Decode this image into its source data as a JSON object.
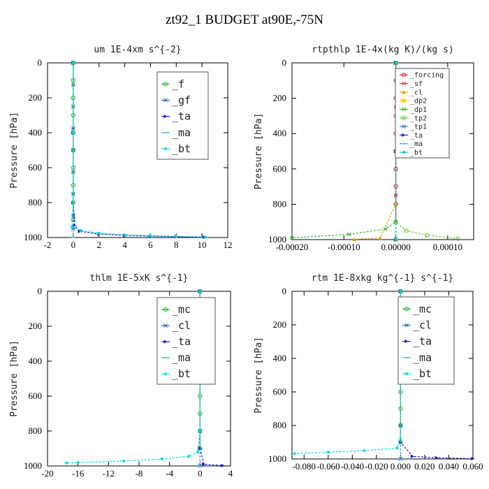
{
  "title": "zt92_1  BUDGET at90E,-75N",
  "chart_data": [
    {
      "type": "line",
      "title": "um   1E-4xm s^{-2}",
      "ylabel": "Pressure [hPa]",
      "xlim": [
        -2,
        12
      ],
      "ylim": [
        0,
        1000
      ],
      "y_inverted": true,
      "xticks": [
        "-2",
        "0",
        "2",
        "4",
        "6",
        "8",
        "10",
        "12"
      ],
      "yticks": [
        "0",
        "200",
        "400",
        "600",
        "800",
        "1000"
      ],
      "legend_style": "big",
      "legend_placement": "top-right",
      "series": [
        {
          "name": "_f",
          "color": "#22aa22",
          "marker": "o",
          "x": [
            0,
            0,
            0,
            0,
            0,
            0,
            0,
            0,
            0,
            0
          ],
          "y": [
            0,
            100,
            200,
            300,
            400,
            500,
            600,
            700,
            800,
            900
          ]
        },
        {
          "name": "_gf",
          "color": "#2a6fb0",
          "marker": "*",
          "x": [
            0,
            0,
            0,
            0,
            0,
            0,
            0,
            0,
            0
          ],
          "y": [
            0,
            125,
            250,
            375,
            500,
            625,
            750,
            875,
            950
          ]
        },
        {
          "name": "_ta",
          "color": "#1a1acc",
          "marker": ">",
          "x": [
            0,
            0,
            0,
            0.1,
            0.5,
            2,
            4,
            6,
            8,
            10.2
          ],
          "y": [
            0,
            400,
            800,
            930,
            965,
            980,
            988,
            992,
            995,
            998
          ]
        },
        {
          "name": "_ma",
          "color": "#33aadd",
          "marker": "-",
          "x": [
            0,
            0,
            0,
            0,
            0
          ],
          "y": [
            0,
            250,
            500,
            750,
            1000
          ]
        },
        {
          "name": "_bt",
          "color": "#00dddd",
          "marker": "D",
          "x": [
            0,
            0,
            0,
            -0.1,
            0.6,
            2,
            4,
            6,
            8,
            10.3
          ],
          "y": [
            0,
            400,
            800,
            940,
            960,
            975,
            985,
            990,
            994,
            998
          ]
        }
      ]
    },
    {
      "type": "line",
      "title": "rtpthlp   1E-4x(kg K)/(kg s)",
      "ylabel": "Pressure [hPa]",
      "xlim": [
        -0.0002,
        0.00015
      ],
      "ylim": [
        0,
        1000
      ],
      "y_inverted": true,
      "xticks": [
        "-0.00020",
        "-0.00010",
        "0.00000",
        "0.00010"
      ],
      "xtick_values": [
        -0.0002,
        -0.0001,
        0,
        0.0001
      ],
      "yticks": [
        "0",
        "200",
        "400",
        "600",
        "800",
        "1000"
      ],
      "legend_style": "small",
      "legend_placement": "top-right",
      "series": [
        {
          "name": "_forcing",
          "color": "#cc2222",
          "marker": "o",
          "x": [
            0,
            0,
            0,
            0,
            0,
            0,
            0,
            0,
            0,
            0
          ],
          "y": [
            0,
            100,
            200,
            300,
            400,
            500,
            600,
            700,
            800,
            900
          ]
        },
        {
          "name": "_sf",
          "color": "#dd3333",
          "marker": "*",
          "x": [
            0,
            0,
            0,
            0,
            0
          ],
          "y": [
            0,
            250,
            500,
            750,
            1000
          ]
        },
        {
          "name": "_cl",
          "color": "#ee9900",
          "marker": "^",
          "x": [
            0,
            0,
            -3e-05,
            -8e-05
          ],
          "y": [
            0,
            800,
            990,
            998
          ]
        },
        {
          "name": "_dp2",
          "color": "#ffcc00",
          "marker": "s",
          "x": [
            0,
            0,
            0
          ],
          "y": [
            0,
            500,
            1000
          ]
        },
        {
          "name": "_dp1",
          "color": "#33bb33",
          "marker": "x",
          "x": [
            0,
            0,
            -2e-05,
            -9e-05,
            -0.0002
          ],
          "y": [
            0,
            900,
            940,
            970,
            990
          ]
        },
        {
          "name": "_tp2",
          "color": "#66cc33",
          "marker": "o",
          "x": [
            0,
            0,
            2e-05,
            6e-05,
            0.00012
          ],
          "y": [
            0,
            900,
            950,
            975,
            995
          ]
        },
        {
          "name": "_tp1",
          "color": "#2288cc",
          "marker": "*",
          "x": [
            0,
            0,
            0
          ],
          "y": [
            0,
            500,
            1000
          ]
        },
        {
          "name": "_ta",
          "color": "#2222cc",
          "marker": ">",
          "x": [
            0,
            0,
            0
          ],
          "y": [
            0,
            500,
            1000
          ]
        },
        {
          "name": "_ma",
          "color": "#33aadd",
          "marker": "-",
          "x": [
            0,
            0,
            0
          ],
          "y": [
            0,
            500,
            1000
          ]
        },
        {
          "name": "_bt",
          "color": "#00cccc",
          "marker": "D",
          "x": [
            0,
            0,
            0
          ],
          "y": [
            0,
            500,
            1000
          ]
        }
      ]
    },
    {
      "type": "line",
      "title": "thlm   1E-5xK s^{-1}",
      "ylabel": "Pressure [hPa]",
      "xlim": [
        -20,
        4
      ],
      "ylim": [
        0,
        1000
      ],
      "y_inverted": true,
      "xticks": [
        "-20",
        "-16",
        "-12",
        "-8",
        "-4",
        "0",
        "4"
      ],
      "yticks": [
        "0",
        "200",
        "400",
        "600",
        "800",
        "1000"
      ],
      "legend_style": "big",
      "legend_placement": "top-right",
      "series": [
        {
          "name": "_mc",
          "color": "#22aa22",
          "marker": "o",
          "x": [
            0,
            0,
            0,
            0,
            0,
            0,
            0,
            0,
            0,
            0
          ],
          "y": [
            0,
            100,
            200,
            300,
            400,
            500,
            600,
            700,
            800,
            900
          ]
        },
        {
          "name": "_cl",
          "color": "#2a6fb0",
          "marker": "*",
          "x": [
            0,
            0,
            0,
            0
          ],
          "y": [
            0,
            400,
            800,
            1000
          ]
        },
        {
          "name": "_ta",
          "color": "#1a1acc",
          "marker": ">",
          "x": [
            0,
            0,
            0.5,
            3
          ],
          "y": [
            0,
            900,
            990,
            998
          ]
        },
        {
          "name": "_ma",
          "color": "#33aadd",
          "marker": "-",
          "x": [
            0,
            0,
            0
          ],
          "y": [
            0,
            500,
            1000
          ]
        },
        {
          "name": "_bt",
          "color": "#00dddd",
          "marker": "D",
          "x": [
            0,
            0,
            -0.3,
            -1.5,
            -5,
            -10,
            -16,
            -17.5
          ],
          "y": [
            0,
            800,
            920,
            945,
            960,
            972,
            980,
            983
          ]
        }
      ]
    },
    {
      "type": "line",
      "title": "rtm   1E-8xkg kg^{-1} s^{-1}",
      "ylabel": "Pressure [hPa]",
      "xlim": [
        -0.09,
        0.06
      ],
      "ylim": [
        0,
        1000
      ],
      "y_inverted": true,
      "xticks": [
        "-0.080",
        "-0.060",
        "-0.040",
        "-0.020",
        "0.000",
        "0.020",
        "0.040",
        "0.060"
      ],
      "xtick_values": [
        -0.08,
        -0.06,
        -0.04,
        -0.02,
        0,
        0.02,
        0.04,
        0.06
      ],
      "yticks": [
        "0",
        "200",
        "400",
        "600",
        "800",
        "1000"
      ],
      "legend_style": "big",
      "legend_placement": "top-right",
      "series": [
        {
          "name": "_mc",
          "color": "#22aa22",
          "marker": "o",
          "x": [
            0,
            0,
            0,
            0,
            0,
            0,
            0,
            0,
            0,
            0
          ],
          "y": [
            0,
            100,
            200,
            300,
            400,
            500,
            600,
            700,
            800,
            900
          ]
        },
        {
          "name": "_cl",
          "color": "#2a6fb0",
          "marker": "*",
          "x": [
            0,
            0,
            0,
            0
          ],
          "y": [
            0,
            400,
            800,
            1000
          ]
        },
        {
          "name": "_ta",
          "color": "#1a1acc",
          "marker": ">",
          "x": [
            0,
            0,
            0.01,
            0.03,
            0.06
          ],
          "y": [
            0,
            900,
            985,
            993,
            998
          ]
        },
        {
          "name": "_ma",
          "color": "#33aadd",
          "marker": "-",
          "x": [
            0,
            0,
            0
          ],
          "y": [
            0,
            500,
            1000
          ]
        },
        {
          "name": "_bt",
          "color": "#00dddd",
          "marker": "D",
          "x": [
            0,
            0,
            -0.003,
            -0.03,
            -0.06,
            -0.088
          ],
          "y": [
            0,
            880,
            935,
            950,
            960,
            968
          ]
        }
      ]
    }
  ]
}
